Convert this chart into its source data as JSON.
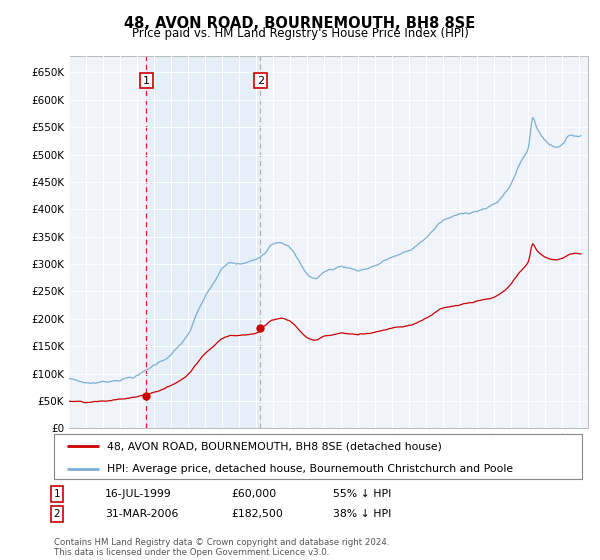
{
  "title": "48, AVON ROAD, BOURNEMOUTH, BH8 8SE",
  "subtitle": "Price paid vs. HM Land Registry's House Price Index (HPI)",
  "legend_line1": "48, AVON ROAD, BOURNEMOUTH, BH8 8SE (detached house)",
  "legend_line2": "HPI: Average price, detached house, Bournemouth Christchurch and Poole",
  "footnote": "Contains HM Land Registry data © Crown copyright and database right 2024.\nThis data is licensed under the Open Government Licence v3.0.",
  "sale1_date": "16-JUL-1999",
  "sale1_price": "£60,000",
  "sale1_hpi": "55% ↓ HPI",
  "sale1_date_num": 1999.54,
  "sale1_price_val": 60000,
  "sale2_date": "31-MAR-2006",
  "sale2_price": "£182,500",
  "sale2_hpi": "38% ↓ HPI",
  "sale2_date_num": 2006.25,
  "sale2_price_val": 182500,
  "hpi_color": "#7bafd4",
  "price_color": "#cc0000",
  "shade_color": "#dce9f5",
  "background_color": "#f0f4fa",
  "ylim": [
    0,
    680000
  ],
  "yticks": [
    0,
    50000,
    100000,
    150000,
    200000,
    250000,
    300000,
    350000,
    400000,
    450000,
    500000,
    550000,
    600000,
    650000
  ],
  "xlim_start": 1995.0,
  "xlim_end": 2025.5
}
